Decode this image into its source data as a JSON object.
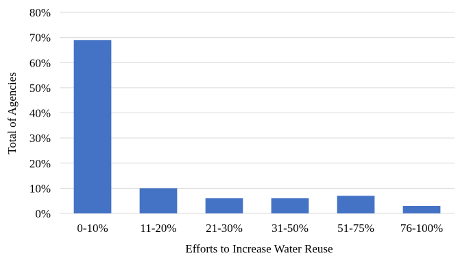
{
  "chart_data": {
    "type": "bar",
    "title": "",
    "xlabel": "Efforts to Increase Water Reuse",
    "ylabel": "Total of Agencies",
    "categories": [
      "0-10%",
      "11-20%",
      "21-30%",
      "31-50%",
      "51-75%",
      "76-100%"
    ],
    "values": [
      69,
      10,
      6,
      6,
      7,
      3
    ],
    "ylim": [
      0,
      80
    ],
    "yticks": [
      0,
      10,
      20,
      30,
      40,
      50,
      60,
      70,
      80
    ],
    "ytick_labels": [
      "0%",
      "10%",
      "20%",
      "30%",
      "40%",
      "50%",
      "60%",
      "70%",
      "80%"
    ],
    "unit": "%",
    "grid": true,
    "legend": "none",
    "bar_color": "#4472c4"
  }
}
